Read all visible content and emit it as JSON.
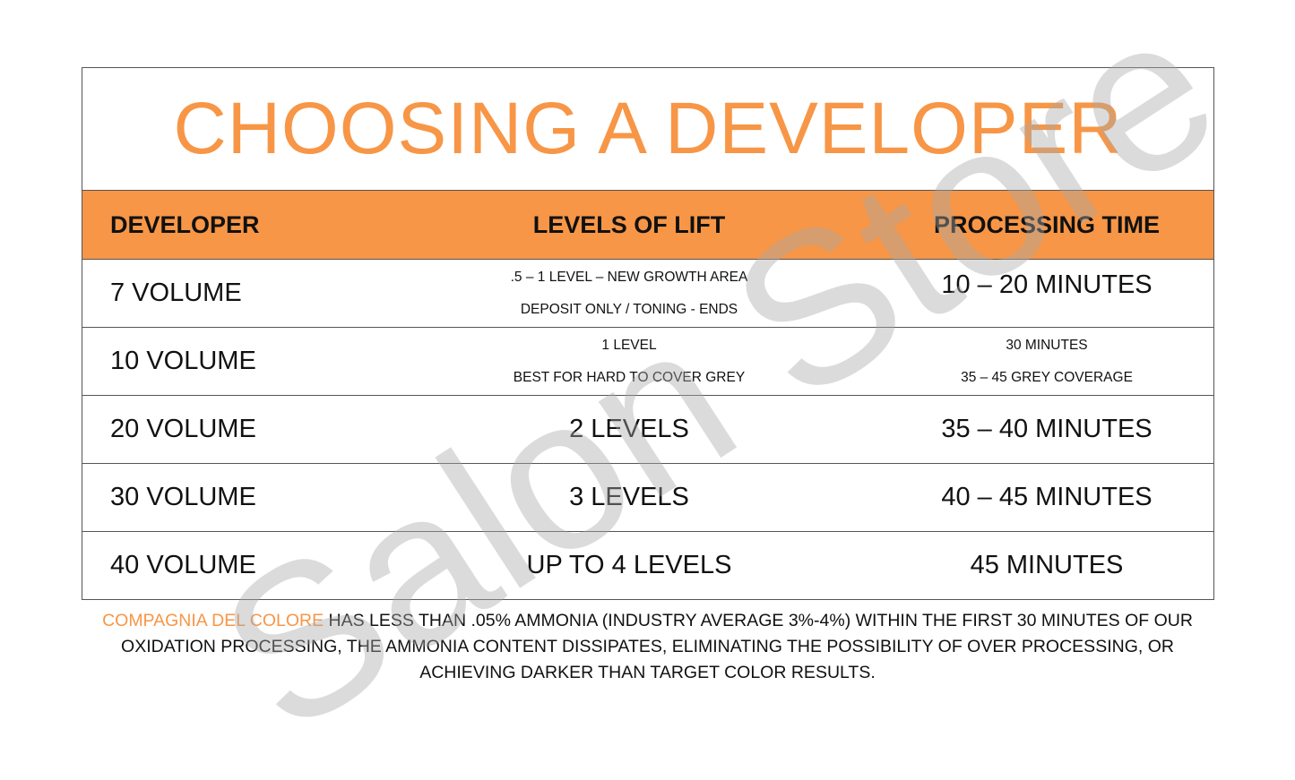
{
  "title": "CHOOSING A DEVELOPER",
  "headers": [
    "DEVELOPER",
    "LEVELS OF LIFT",
    "PROCESSING TIME"
  ],
  "rows": [
    {
      "developer": "7 VOLUME",
      "lift": [
        ".5 – 1 LEVEL – NEW GROWTH AREA",
        "DEPOSIT ONLY / TONING - ENDS"
      ],
      "time": [
        "10 – 20 MINUTES"
      ]
    },
    {
      "developer": "10 VOLUME",
      "lift": [
        "1 LEVEL",
        "BEST FOR HARD TO COVER GREY"
      ],
      "time": [
        "30 MINUTES",
        "35 – 45 GREY COVERAGE"
      ]
    },
    {
      "developer": "20 VOLUME",
      "lift": [
        "2 LEVELS"
      ],
      "time": [
        "35 – 40 MINUTES"
      ]
    },
    {
      "developer": "30 VOLUME",
      "lift": [
        "3 LEVELS"
      ],
      "time": [
        "40 – 45 MINUTES"
      ]
    },
    {
      "developer": "40 VOLUME",
      "lift": [
        "UP TO 4 LEVELS"
      ],
      "time": [
        "45 MINUTES"
      ]
    }
  ],
  "footer": {
    "brand": "COMPAGNIA DEL COLORE",
    "text": " HAS LESS THAN .05% AMMONIA (INDUSTRY AVERAGE 3%-4%) WITHIN THE FIRST 30 MINUTES OF OUR OXIDATION PROCESSING, THE AMMONIA CONTENT DISSIPATES, ELIMINATING THE POSSIBILITY OF OVER PROCESSING, OR ACHIEVING DARKER THAN TARGET COLOR RESULTS."
  },
  "watermark": "Salon Store",
  "colors": {
    "accent": "#F79646"
  }
}
